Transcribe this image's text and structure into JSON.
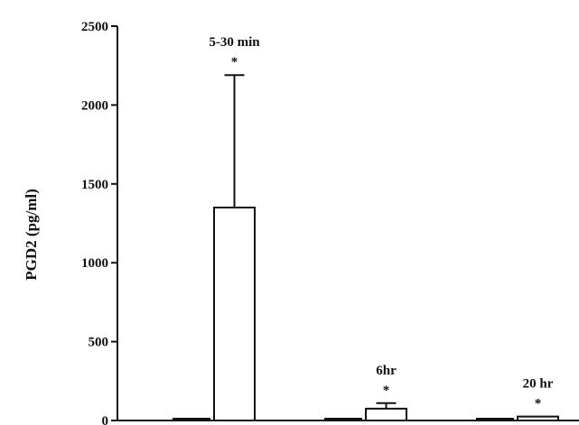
{
  "chart_data": {
    "type": "bar",
    "ylabel": "PGD2 (pg/ml)",
    "xlabel": "",
    "ylim": [
      0,
      2500
    ],
    "yticks": [
      0,
      500,
      1000,
      1500,
      2000,
      2500
    ],
    "groups": [
      {
        "label": "5-30 min",
        "bars": [
          {
            "value": 10,
            "fill": "dark",
            "error": 0,
            "star": false
          },
          {
            "value": 1350,
            "fill": "white",
            "error": 840,
            "star": true
          }
        ]
      },
      {
        "label": "6hr",
        "bars": [
          {
            "value": 5,
            "fill": "dark",
            "error": 0,
            "star": false
          },
          {
            "value": 75,
            "fill": "white",
            "error": 35,
            "star": true
          }
        ]
      },
      {
        "label": "20 hr",
        "bars": [
          {
            "value": 0,
            "fill": "dark",
            "error": 0,
            "star": false
          },
          {
            "value": 25,
            "fill": "white",
            "error": 0,
            "star": true
          }
        ]
      }
    ],
    "significance_marker": "*",
    "grid": false,
    "legend": "none"
  },
  "colors": {
    "axis": "#111111",
    "bar_dark": "#111111",
    "bar_white": "#ffffff"
  }
}
